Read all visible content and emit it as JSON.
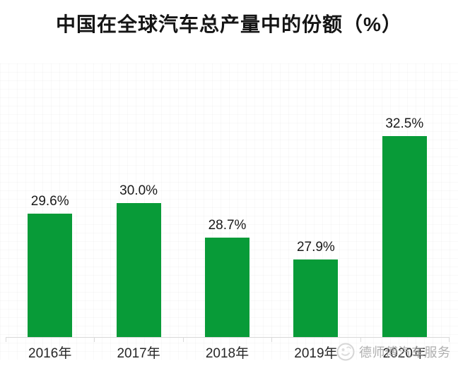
{
  "title": "中国在全球汽车总产量中的份额（%）",
  "chart_data": {
    "type": "bar",
    "title": "中国在全球汽车总产量中的份额（%）",
    "categories": [
      "2016年",
      "2017年",
      "2018年",
      "2019年",
      "2020年"
    ],
    "values": [
      29.6,
      30.0,
      28.7,
      27.9,
      32.5
    ],
    "value_labels": [
      "29.6%",
      "30.0%",
      "28.7%",
      "27.9%",
      "32.5%"
    ],
    "xlabel": "",
    "ylabel": "",
    "ylim": [
      25,
      34
    ],
    "y_axis_shown": false,
    "grid": "faint",
    "legend": "none",
    "bar_color": "#089b38",
    "value_label_color": "#1a1a1a",
    "x_label_color": "#262626",
    "axis_color": "#d9d9d9"
  },
  "watermark": {
    "logo_icon": "mascot-circle-logo",
    "text": "德师傅汽车服务",
    "color": "#a4a4a4"
  }
}
